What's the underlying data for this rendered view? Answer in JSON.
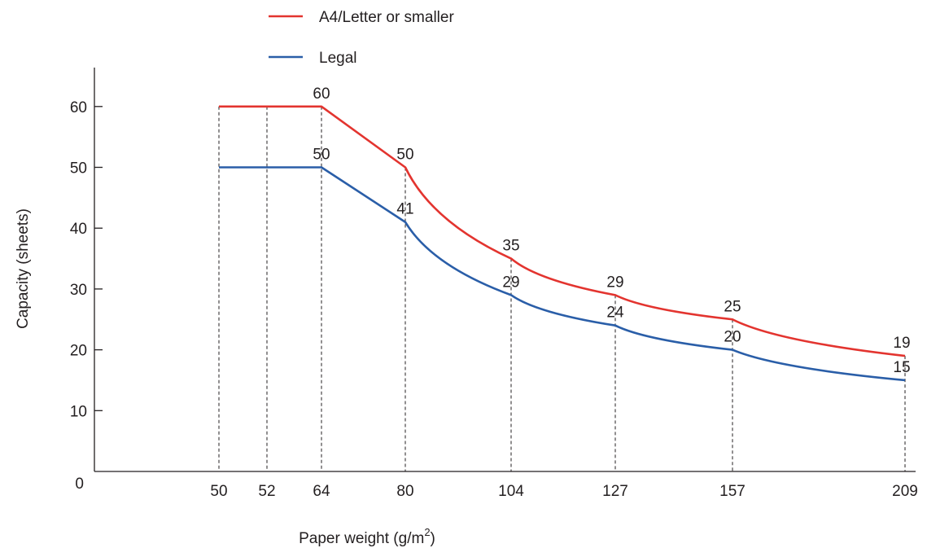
{
  "chart_data": {
    "type": "line",
    "xlabel": "Paper weight (g/m",
    "xlabel_sup": "2",
    "xlabel_close": ")",
    "ylabel": "Capacity (sheets)",
    "x_ticks": [
      "50",
      "52",
      "64",
      "80",
      "104",
      "127",
      "157",
      "209"
    ],
    "y_ticks": [
      "0",
      "10",
      "20",
      "30",
      "40",
      "50",
      "60"
    ],
    "ylim": [
      0,
      65
    ],
    "x_categories": [
      50,
      52,
      64,
      80,
      104,
      127,
      157,
      209
    ],
    "legend_position": "top",
    "series": [
      {
        "name": "A4/Letter or smaller",
        "color": "#e3342f",
        "x": [
          50,
          52,
          64,
          80,
          104,
          127,
          157,
          209
        ],
        "y": [
          60,
          60,
          60,
          50,
          35,
          29,
          25,
          19
        ],
        "labels": [
          {
            "x": 64,
            "text": "60"
          },
          {
            "x": 80,
            "text": "50"
          },
          {
            "x": 104,
            "text": "35"
          },
          {
            "x": 127,
            "text": "29"
          },
          {
            "x": 157,
            "text": "25"
          },
          {
            "x": 209,
            "text": "19"
          }
        ]
      },
      {
        "name": "Legal",
        "color": "#2a5ea8",
        "x": [
          50,
          52,
          64,
          80,
          104,
          127,
          157,
          209
        ],
        "y": [
          50,
          50,
          50,
          41,
          29,
          24,
          20,
          15
        ],
        "labels": [
          {
            "x": 64,
            "text": "50"
          },
          {
            "x": 80,
            "text": "41"
          },
          {
            "x": 104,
            "text": "29"
          },
          {
            "x": 127,
            "text": "24"
          },
          {
            "x": 157,
            "text": "20"
          },
          {
            "x": 209,
            "text": "15"
          }
        ]
      }
    ]
  }
}
